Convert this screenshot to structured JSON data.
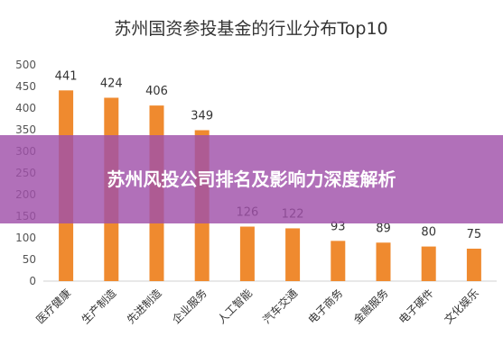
{
  "chart_data": {
    "type": "bar",
    "title": "苏州国资参投基金的行业分布Top10",
    "xlabel": "",
    "ylabel": "",
    "ylim": [
      0,
      500
    ],
    "yticks": [
      0,
      50,
      100,
      150,
      200,
      250,
      300,
      350,
      400,
      450,
      500
    ],
    "grid": false,
    "categories": [
      "医疗健康",
      "生产制造",
      "先进制造",
      "企业服务",
      "人工智能",
      "汽车交通",
      "电子商务",
      "金融服务",
      "电子硬件",
      "文化娱乐"
    ],
    "values": [
      441,
      424,
      406,
      349,
      126,
      122,
      93,
      89,
      80,
      75
    ],
    "data_labels": [
      "441",
      "424",
      "406",
      "349",
      "126",
      "122",
      "93",
      "89",
      "80",
      "75"
    ],
    "bar_color": "#ef8a2f"
  },
  "banner": {
    "text": "苏州风投公司排名及影响力深度解析",
    "color": "#a050aa"
  }
}
